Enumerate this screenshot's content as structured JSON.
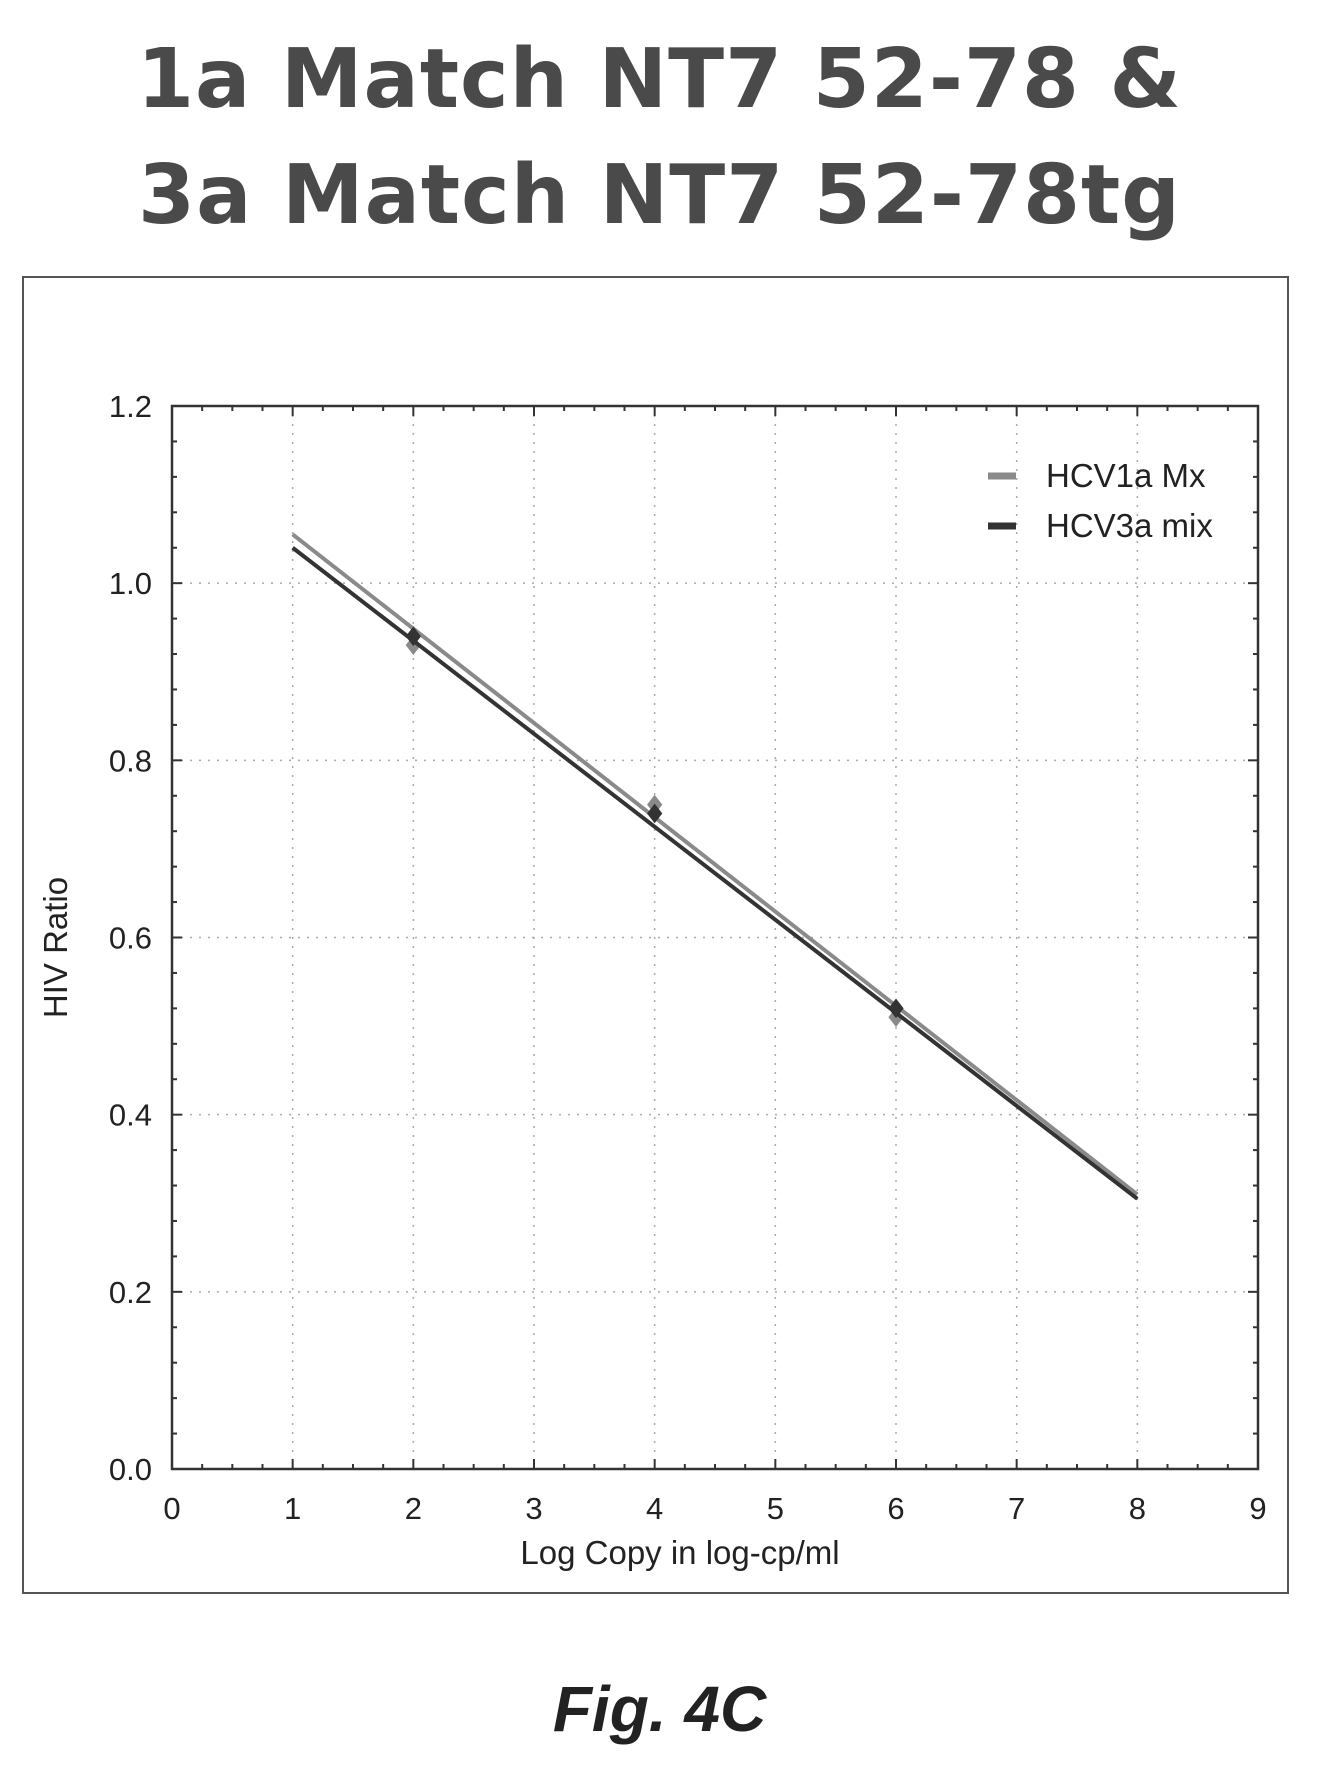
{
  "title": {
    "line1": "1a Match NT7 52-78 &",
    "line2": "3a Match NT7 52-78tg"
  },
  "caption": "Fig. 4C",
  "chart_data": {
    "type": "line",
    "xlabel": "Log Copy in log-cp/ml",
    "ylabel": "HIV Ratio",
    "xlim": [
      0,
      9
    ],
    "ylim": [
      0,
      1.2
    ],
    "x_ticks": [
      0,
      1,
      2,
      3,
      4,
      5,
      6,
      7,
      8,
      9
    ],
    "y_ticks": [
      "0.0",
      "0.2",
      "0.4",
      "0.6",
      "0.8",
      "1.0",
      "1.2"
    ],
    "grid": true,
    "legend_position": "top-right",
    "series": [
      {
        "name": "HCV1a Mx",
        "color": "#8a8a8a",
        "points": [
          [
            2,
            0.93
          ],
          [
            4,
            0.75
          ],
          [
            6,
            0.51
          ]
        ],
        "trendline": [
          [
            1,
            1.055
          ],
          [
            8,
            0.31
          ]
        ]
      },
      {
        "name": "HCV3a mix",
        "color": "#333333",
        "points": [
          [
            2,
            0.94
          ],
          [
            4,
            0.74
          ],
          [
            6,
            0.52
          ]
        ],
        "trendline": [
          [
            1,
            1.04
          ],
          [
            8,
            0.305
          ]
        ]
      }
    ]
  }
}
